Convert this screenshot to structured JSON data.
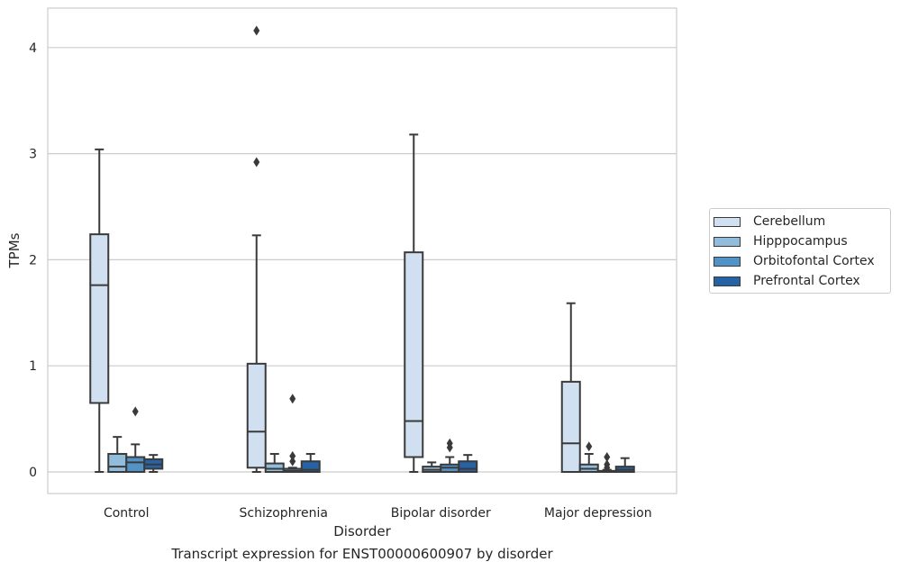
{
  "caption": "Transcript expression for ENST00000600907 by disorder",
  "colors": {
    "Cerebellum": "#d1e0f0",
    "Hipppocampus": "#92bcdc",
    "Orbitofontal Cortex": "#5193c6",
    "Prefrontal Cortex": "#2563a6",
    "line": "#3a3a3a",
    "grid": "#cccccc"
  },
  "chart_data": {
    "type": "box",
    "title": "",
    "xlabel": "Disorder",
    "ylabel": "TPMs",
    "categories": [
      "Control",
      "Schizophrenia",
      "Bipolar disorder",
      "Major depression"
    ],
    "ylim": [
      -0.2,
      4.38
    ],
    "yticks": [
      0,
      1,
      2,
      3,
      4
    ],
    "grid": "horizontal",
    "legend_position": "right",
    "series": [
      {
        "name": "Cerebellum",
        "boxes": [
          {
            "whislo": 0.0,
            "q1": 0.65,
            "med": 1.76,
            "q3": 2.24,
            "whishi": 3.04,
            "fliers": []
          },
          {
            "whislo": 0.0,
            "q1": 0.04,
            "med": 0.38,
            "q3": 1.02,
            "whishi": 2.23,
            "fliers": [
              2.92,
              4.16
            ]
          },
          {
            "whislo": 0.0,
            "q1": 0.14,
            "med": 0.48,
            "q3": 2.07,
            "whishi": 3.18,
            "fliers": []
          },
          {
            "whislo": 0.0,
            "q1": 0.0,
            "med": 0.27,
            "q3": 0.85,
            "whishi": 1.59,
            "fliers": []
          }
        ]
      },
      {
        "name": "Hipppocampus",
        "boxes": [
          {
            "whislo": 0.0,
            "q1": 0.0,
            "med": 0.05,
            "q3": 0.17,
            "whishi": 0.33,
            "fliers": []
          },
          {
            "whislo": 0.0,
            "q1": 0.0,
            "med": 0.03,
            "q3": 0.08,
            "whishi": 0.17,
            "fliers": []
          },
          {
            "whislo": 0.0,
            "q1": 0.0,
            "med": 0.02,
            "q3": 0.05,
            "whishi": 0.09,
            "fliers": []
          },
          {
            "whislo": 0.0,
            "q1": 0.0,
            "med": 0.03,
            "q3": 0.07,
            "whishi": 0.17,
            "fliers": [
              0.24
            ]
          }
        ]
      },
      {
        "name": "Orbitofontal Cortex",
        "boxes": [
          {
            "whislo": 0.0,
            "q1": 0.0,
            "med": 0.09,
            "q3": 0.14,
            "whishi": 0.26,
            "fliers": [
              0.57
            ]
          },
          {
            "whislo": 0.0,
            "q1": 0.0,
            "med": 0.01,
            "q3": 0.03,
            "whishi": 0.04,
            "fliers": [
              0.1,
              0.15,
              0.69
            ]
          },
          {
            "whislo": 0.0,
            "q1": 0.0,
            "med": 0.04,
            "q3": 0.07,
            "whishi": 0.14,
            "fliers": [
              0.23,
              0.27
            ]
          },
          {
            "whislo": 0.0,
            "q1": 0.0,
            "med": 0.0,
            "q3": 0.01,
            "whishi": 0.02,
            "fliers": [
              0.04,
              0.07,
              0.14
            ]
          }
        ]
      },
      {
        "name": "Prefrontal Cortex",
        "boxes": [
          {
            "whislo": 0.0,
            "q1": 0.03,
            "med": 0.07,
            "q3": 0.12,
            "whishi": 0.16,
            "fliers": []
          },
          {
            "whislo": 0.0,
            "q1": 0.0,
            "med": 0.02,
            "q3": 0.1,
            "whishi": 0.17,
            "fliers": []
          },
          {
            "whislo": 0.0,
            "q1": 0.0,
            "med": 0.03,
            "q3": 0.1,
            "whishi": 0.16,
            "fliers": []
          },
          {
            "whislo": 0.0,
            "q1": 0.0,
            "med": 0.02,
            "q3": 0.05,
            "whishi": 0.13,
            "fliers": []
          }
        ]
      }
    ]
  }
}
